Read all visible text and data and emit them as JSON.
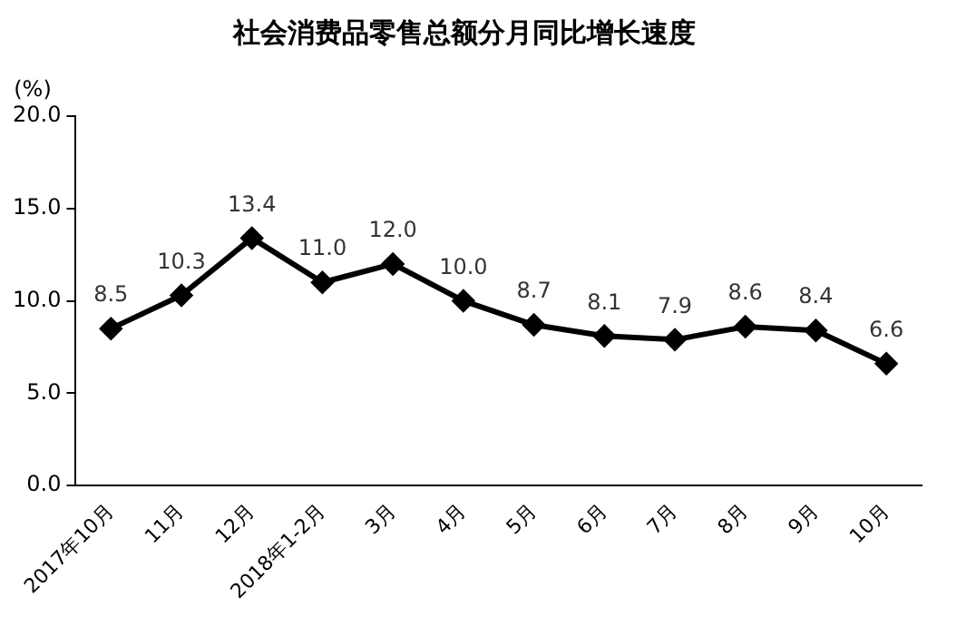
{
  "chart_data": {
    "type": "line",
    "title": "社会消费品零售总额分月同比增长速度",
    "ylabel": "(%)",
    "categories": [
      "2017年10月",
      "11月",
      "12月",
      "2018年1-2月",
      "3月",
      "4月",
      "5月",
      "6月",
      "7月",
      "8月",
      "9月",
      "10月"
    ],
    "series": [
      {
        "color": "#000000",
        "values": [
          8.5,
          10.3,
          13.4,
          11.0,
          12.0,
          10.0,
          8.7,
          8.1,
          7.9,
          8.6,
          8.4,
          6.6
        ],
        "value_labels": [
          "8.5",
          "10.3",
          "13.4",
          "11.0",
          "12.0",
          "10.0",
          "8.7",
          "8.1",
          "7.9",
          "8.6",
          "8.4",
          "6.6"
        ]
      }
    ],
    "ylim": [
      0,
      20
    ],
    "yticks": [
      {
        "value": 0,
        "label": "0.0"
      },
      {
        "value": 5,
        "label": "5.0"
      },
      {
        "value": 10,
        "label": "10.0"
      },
      {
        "value": 15,
        "label": "15.0"
      },
      {
        "value": 20,
        "label": "20.0"
      }
    ],
    "grid": false,
    "legend": false,
    "marker": "diamond",
    "line_style": "solid"
  }
}
